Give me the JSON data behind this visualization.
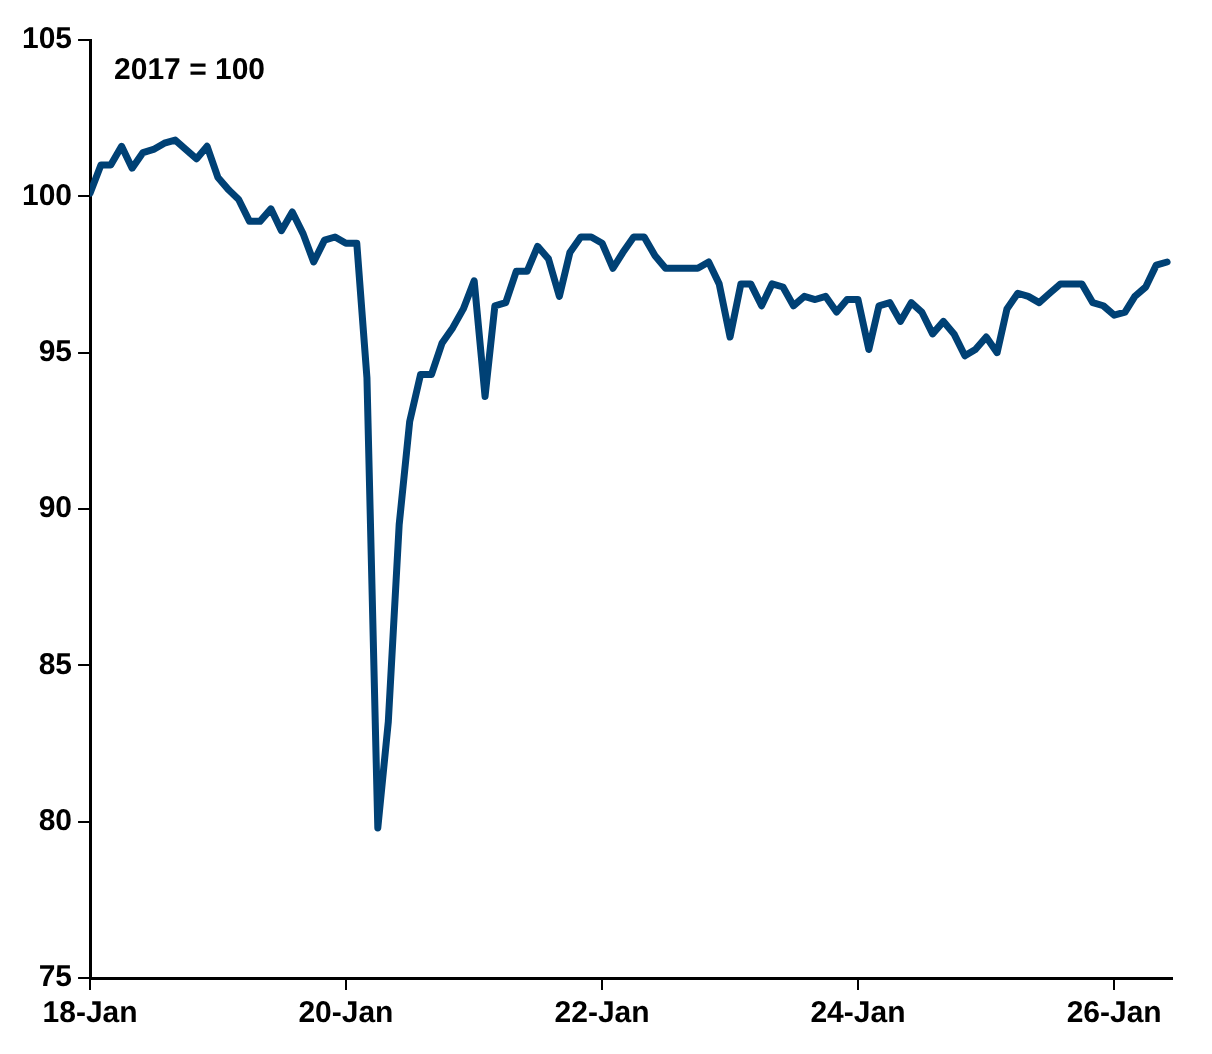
{
  "chart_data": {
    "type": "line",
    "annotations": [
      "2017 = 100"
    ],
    "x": [
      "2018-01",
      "2018-02",
      "2018-03",
      "2018-04",
      "2018-05",
      "2018-06",
      "2018-07",
      "2018-08",
      "2018-09",
      "2018-10",
      "2018-11",
      "2018-12",
      "2019-01",
      "2019-02",
      "2019-03",
      "2019-04",
      "2019-05",
      "2019-06",
      "2019-07",
      "2019-08",
      "2019-09",
      "2019-10",
      "2019-11",
      "2019-12",
      "2020-01",
      "2020-02",
      "2020-03",
      "2020-04",
      "2020-05",
      "2020-06",
      "2020-07",
      "2020-08",
      "2020-09",
      "2020-10",
      "2020-11",
      "2020-12",
      "2021-01",
      "2021-02",
      "2021-03",
      "2021-04",
      "2021-05",
      "2021-06",
      "2021-07",
      "2021-08",
      "2021-09",
      "2021-10",
      "2021-11",
      "2021-12",
      "2022-01",
      "2022-02",
      "2022-03",
      "2022-04",
      "2022-05",
      "2022-06",
      "2022-07",
      "2022-08",
      "2022-09",
      "2022-10",
      "2022-11",
      "2022-12",
      "2023-01",
      "2023-02",
      "2023-03",
      "2023-04",
      "2023-05",
      "2023-06",
      "2023-07",
      "2023-08",
      "2023-09",
      "2023-10",
      "2023-11",
      "2023-12",
      "2024-01",
      "2024-02",
      "2024-03",
      "2024-04",
      "2024-05",
      "2024-06",
      "2024-07",
      "2024-08",
      "2024-09",
      "2024-10",
      "2024-11",
      "2024-12",
      "2025-01",
      "2025-02",
      "2025-03",
      "2025-04",
      "2025-05",
      "2025-06",
      "2025-07",
      "2025-08",
      "2025-09",
      "2025-10",
      "2025-11",
      "2025-12",
      "2026-01",
      "2026-02",
      "2026-03",
      "2026-04",
      "2026-05",
      "2026-06"
    ],
    "series": [
      {
        "color": "#004175",
        "values": [
          100.1,
          101.0,
          101.0,
          101.6,
          100.9,
          101.4,
          101.5,
          101.7,
          101.8,
          101.5,
          101.2,
          101.6,
          100.6,
          100.2,
          99.9,
          99.2,
          99.2,
          99.6,
          98.9,
          99.5,
          98.8,
          97.9,
          98.6,
          98.7,
          98.5,
          98.5,
          94.2,
          79.8,
          83.2,
          89.5,
          92.8,
          94.3,
          94.3,
          95.3,
          95.8,
          96.4,
          97.3,
          93.6,
          96.5,
          96.6,
          97.6,
          97.6,
          98.4,
          98.0,
          96.8,
          98.2,
          98.7,
          98.7,
          98.5,
          97.7,
          98.2,
          98.7,
          98.7,
          98.1,
          97.7,
          97.7,
          97.7,
          97.7,
          97.9,
          97.2,
          95.5,
          97.2,
          97.2,
          96.5,
          97.2,
          97.1,
          96.5,
          96.8,
          96.7,
          96.8,
          96.3,
          96.7,
          96.7,
          95.1,
          96.5,
          96.6,
          96.0,
          96.6,
          96.3,
          95.6,
          96.0,
          95.6,
          94.9,
          95.1,
          95.5,
          95.0,
          96.4,
          96.9,
          96.8,
          96.6,
          96.9,
          97.2,
          97.2,
          97.2,
          96.6,
          96.5,
          96.2,
          96.3,
          96.8,
          97.1,
          97.8,
          97.9
        ]
      }
    ],
    "xlim": [
      "2018-01",
      "2026-06-15"
    ],
    "xticks": [
      {
        "value": "2018-01",
        "label": "18-Jan"
      },
      {
        "value": "2020-01",
        "label": "20-Jan"
      },
      {
        "value": "2022-01",
        "label": "22-Jan"
      },
      {
        "value": "2024-01",
        "label": "24-Jan"
      },
      {
        "value": "2026-01",
        "label": "26-Jan"
      }
    ],
    "ylim": [
      75,
      105
    ],
    "yticks": [
      75,
      80,
      85,
      90,
      95,
      100,
      105
    ],
    "grid": false,
    "legend": false,
    "marker": "none",
    "line_style": "solid"
  }
}
